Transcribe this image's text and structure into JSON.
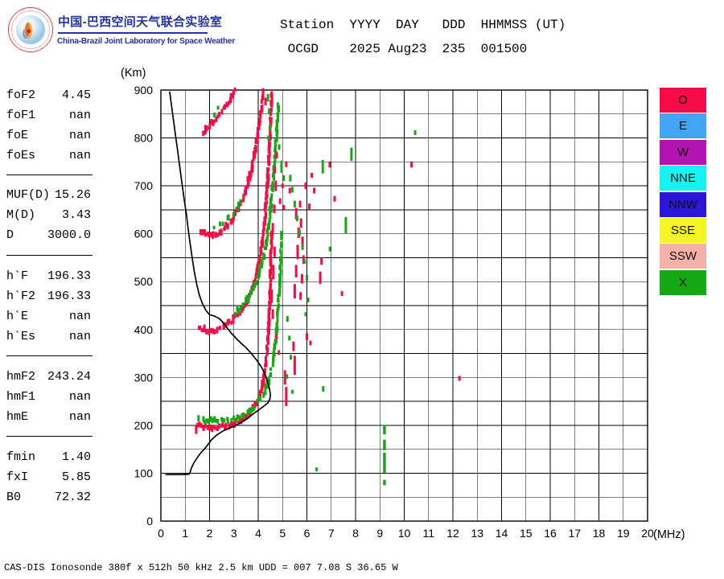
{
  "header": {
    "title_cn": "中国-巴西空间天气联合实验室",
    "subtitle_en": "China-Brazil Joint Laboratory for Space Weather",
    "station_line1": "Station  YYYY  DAY   DDD  HHMMSS (UT)",
    "station_line2": " OCGD    2025 Aug23  235  001500",
    "title_color": "#2433A2"
  },
  "parameters": {
    "groups": [
      {
        "rows": [
          {
            "label": "foF2",
            "value": "4.45"
          },
          {
            "label": "foF1",
            "value": "nan"
          },
          {
            "label": "foE",
            "value": "nan"
          },
          {
            "label": "foEs",
            "value": "nan"
          }
        ]
      },
      {
        "rows": [
          {
            "label": "MUF(D)",
            "value": "15.26"
          },
          {
            "label": "M(D)",
            "value": "3.43"
          },
          {
            "label": "D",
            "value": "3000.0"
          }
        ]
      },
      {
        "rows": [
          {
            "label": "h`F",
            "value": "196.33"
          },
          {
            "label": "h`F2",
            "value": "196.33"
          },
          {
            "label": "h`E",
            "value": "nan"
          },
          {
            "label": "h`Es",
            "value": "nan"
          }
        ]
      },
      {
        "rows": [
          {
            "label": "hmF2",
            "value": "243.24"
          },
          {
            "label": "hmF1",
            "value": "nan"
          },
          {
            "label": "hmE",
            "value": "nan"
          }
        ]
      },
      {
        "rows": [
          {
            "label": "fmin",
            "value": "1.40"
          },
          {
            "label": "fxI",
            "value": "5.85"
          },
          {
            "label": "B0",
            "value": "72.32"
          }
        ]
      }
    ]
  },
  "legend": {
    "items": [
      {
        "label": "O",
        "color": "#F80A46"
      },
      {
        "label": "E",
        "color": "#41A4F5"
      },
      {
        "label": "W",
        "color": "#B214B2"
      },
      {
        "label": "NNE",
        "color": "#17F1F1"
      },
      {
        "label": "NNW",
        "color": "#2B16D9"
      },
      {
        "label": "SSE",
        "color": "#F5F525"
      },
      {
        "label": "SSW",
        "color": "#F5B1A9"
      },
      {
        "label": "X",
        "color": "#15AA15"
      }
    ]
  },
  "caption": "CAS-DIS Ionosonde 380f x 512h 50 kHz 2.5 km UDD = 007 7.08 S 36.65 W",
  "chart_data": {
    "type": "scatter",
    "title": "Ionogram OCGD 2025 Aug23 235 001500 UT",
    "xlabel": "(MHz)",
    "ylabel": "(Km)",
    "xlim": [
      0,
      20
    ],
    "ylim": [
      0,
      900
    ],
    "grid": {
      "x_step": 1,
      "y_step": 50
    },
    "x_ticks": [
      0,
      1,
      2,
      3,
      4,
      5,
      6,
      7,
      8,
      9,
      10,
      11,
      12,
      13,
      14,
      15,
      16,
      17,
      18,
      19,
      20
    ],
    "y_ticks": [
      0,
      100,
      200,
      300,
      400,
      500,
      600,
      700,
      800,
      900
    ],
    "colors": {
      "O": "#F80A46",
      "X": "#15AA15"
    },
    "profile_line": [
      [
        0.18,
        97
      ],
      [
        0.85,
        97
      ],
      [
        1.15,
        98
      ],
      [
        1.2,
        102
      ],
      [
        1.25,
        110
      ],
      [
        1.35,
        121
      ],
      [
        1.5,
        133
      ],
      [
        1.65,
        143
      ],
      [
        1.8,
        151
      ],
      [
        1.95,
        161
      ],
      [
        2.1,
        171
      ],
      [
        2.3,
        180
      ],
      [
        2.55,
        188
      ],
      [
        2.8,
        194
      ],
      [
        3.05,
        199
      ],
      [
        3.3,
        206
      ],
      [
        3.55,
        214
      ],
      [
        3.8,
        224
      ],
      [
        4.05,
        233
      ],
      [
        4.25,
        241
      ],
      [
        4.4,
        247
      ],
      [
        4.48,
        255
      ],
      [
        4.5,
        264
      ],
      [
        4.46,
        277
      ],
      [
        4.38,
        292
      ],
      [
        4.27,
        308
      ],
      [
        4.13,
        322
      ],
      [
        3.95,
        335
      ],
      [
        3.72,
        350
      ],
      [
        3.5,
        362
      ],
      [
        3.3,
        371
      ],
      [
        3.1,
        381
      ],
      [
        2.9,
        392
      ],
      [
        2.7,
        405
      ],
      [
        2.55,
        415
      ],
      [
        2.4,
        423
      ],
      [
        2.2,
        428
      ],
      [
        2.0,
        431
      ],
      [
        1.85,
        440
      ],
      [
        1.7,
        455
      ],
      [
        1.58,
        472
      ],
      [
        1.47,
        495
      ],
      [
        1.37,
        522
      ],
      [
        1.28,
        552
      ],
      [
        1.2,
        580
      ],
      [
        1.12,
        610
      ],
      [
        1.05,
        640
      ],
      [
        0.97,
        668
      ],
      [
        0.88,
        700
      ],
      [
        0.78,
        738
      ],
      [
        0.68,
        776
      ],
      [
        0.58,
        814
      ],
      [
        0.49,
        848
      ],
      [
        0.42,
        874
      ],
      [
        0.36,
        897
      ]
    ],
    "traces": [
      {
        "name": "F-trace 1-hop O-mode",
        "color": "O",
        "density": 0.95,
        "points": [
          [
            1.42,
            197
          ],
          [
            1.6,
            199
          ],
          [
            1.85,
            197
          ],
          [
            2.1,
            196
          ],
          [
            2.4,
            197
          ],
          [
            2.7,
            199
          ],
          [
            3.0,
            204
          ],
          [
            3.25,
            211
          ],
          [
            3.5,
            221
          ],
          [
            3.75,
            233
          ],
          [
            3.95,
            250
          ],
          [
            4.1,
            270
          ],
          [
            4.2,
            293
          ],
          [
            4.3,
            325
          ],
          [
            4.37,
            362
          ],
          [
            4.43,
            408
          ],
          [
            4.47,
            455
          ],
          [
            4.5,
            505
          ],
          [
            4.53,
            558
          ],
          [
            4.55,
            608
          ]
        ]
      },
      {
        "name": "F-trace 1-hop X-mode",
        "color": "X",
        "density": 0.82,
        "points": [
          [
            1.52,
            215
          ],
          [
            1.8,
            212
          ],
          [
            2.1,
            210
          ],
          [
            2.4,
            209
          ],
          [
            2.7,
            210
          ],
          [
            3.0,
            213
          ],
          [
            3.3,
            219
          ],
          [
            3.6,
            228
          ],
          [
            3.85,
            240
          ],
          [
            4.1,
            256
          ],
          [
            4.3,
            275
          ],
          [
            4.45,
            297
          ],
          [
            4.58,
            325
          ],
          [
            4.68,
            360
          ],
          [
            4.76,
            402
          ],
          [
            4.83,
            450
          ],
          [
            4.88,
            500
          ],
          [
            4.93,
            552
          ],
          [
            4.97,
            605
          ]
        ]
      },
      {
        "name": "F-trace 2-hop O-mode",
        "color": "O",
        "density": 0.95,
        "points": [
          [
            1.55,
            406
          ],
          [
            1.75,
            401
          ],
          [
            1.95,
            399
          ],
          [
            2.15,
            398
          ],
          [
            2.35,
            401
          ],
          [
            2.55,
            406
          ],
          [
            2.75,
            412
          ],
          [
            2.95,
            420
          ],
          [
            3.15,
            431
          ],
          [
            3.35,
            444
          ],
          [
            3.55,
            460
          ],
          [
            3.7,
            478
          ],
          [
            3.85,
            498
          ],
          [
            3.97,
            523
          ],
          [
            4.08,
            551
          ],
          [
            4.17,
            583
          ],
          [
            4.25,
            618
          ],
          [
            4.31,
            655
          ],
          [
            4.37,
            695
          ],
          [
            4.42,
            738
          ],
          [
            4.46,
            780
          ],
          [
            4.5,
            825
          ],
          [
            4.53,
            868
          ],
          [
            4.55,
            895
          ]
        ]
      },
      {
        "name": "F-trace 2-hop X-mode",
        "color": "X",
        "density": 0.8,
        "points": [
          [
            3.05,
            436
          ],
          [
            3.25,
            444
          ],
          [
            3.45,
            455
          ],
          [
            3.65,
            469
          ],
          [
            3.82,
            486
          ],
          [
            3.98,
            507
          ],
          [
            4.12,
            532
          ],
          [
            4.26,
            562
          ],
          [
            4.38,
            597
          ],
          [
            4.48,
            637
          ],
          [
            4.56,
            678
          ],
          [
            4.63,
            718
          ],
          [
            4.69,
            758
          ],
          [
            4.74,
            798
          ],
          [
            4.79,
            838
          ],
          [
            4.83,
            872
          ]
        ]
      },
      {
        "name": "F-trace 3-hop O-mode",
        "color": "O",
        "density": 0.9,
        "points": [
          [
            1.65,
            603
          ],
          [
            1.85,
            598
          ],
          [
            2.05,
            596
          ],
          [
            2.25,
            598
          ],
          [
            2.45,
            603
          ],
          [
            2.65,
            612
          ],
          [
            2.85,
            624
          ],
          [
            3.05,
            640
          ],
          [
            3.25,
            661
          ],
          [
            3.45,
            686
          ],
          [
            3.62,
            714
          ],
          [
            3.77,
            745
          ],
          [
            3.9,
            778
          ],
          [
            4.0,
            812
          ],
          [
            4.1,
            848
          ],
          [
            4.18,
            882
          ],
          [
            4.23,
            900
          ]
        ]
      },
      {
        "name": "F-trace 3-hop X-mode",
        "color": "X",
        "density": 0.35,
        "points": [
          [
            2.1,
            612
          ],
          [
            2.4,
            617
          ],
          [
            2.7,
            628
          ],
          [
            3.0,
            645
          ],
          [
            3.3,
            668
          ]
        ]
      },
      {
        "name": "F-trace 4-hop O-mode",
        "color": "O",
        "density": 0.85,
        "points": [
          [
            1.75,
            812
          ],
          [
            1.95,
            822
          ],
          [
            2.15,
            833
          ],
          [
            2.35,
            845
          ],
          [
            2.55,
            858
          ],
          [
            2.75,
            872
          ],
          [
            2.95,
            888
          ],
          [
            3.08,
            900
          ]
        ]
      }
    ],
    "scatter": {
      "red_points": [
        [
          4.2,
          897,
          14
        ],
        [
          4.3,
          876,
          16
        ],
        [
          4.6,
          432,
          20
        ],
        [
          4.55,
          470,
          28
        ],
        [
          4.62,
          520,
          30
        ],
        [
          4.67,
          562,
          22
        ],
        [
          4.6,
          610,
          25
        ],
        [
          4.66,
          652,
          18
        ],
        [
          4.72,
          700,
          22
        ],
        [
          4.68,
          733,
          15
        ],
        [
          4.76,
          764,
          14
        ],
        [
          4.85,
          352,
          10
        ],
        [
          4.75,
          385,
          12
        ],
        [
          4.9,
          668,
          12
        ],
        [
          5.0,
          700,
          10
        ],
        [
          5.15,
          745,
          12
        ],
        [
          5.3,
          690,
          12
        ],
        [
          5.05,
          655,
          10
        ],
        [
          5.1,
          300,
          30
        ],
        [
          5.15,
          260,
          40
        ],
        [
          5.45,
          365,
          20
        ],
        [
          5.5,
          325,
          40
        ],
        [
          5.5,
          480,
          30
        ],
        [
          5.56,
          522,
          26
        ],
        [
          5.62,
          562,
          30
        ],
        [
          5.66,
          602,
          22
        ],
        [
          5.56,
          642,
          24
        ],
        [
          5.72,
          662,
          14
        ],
        [
          5.76,
          622,
          20
        ],
        [
          5.82,
          582,
          24
        ],
        [
          5.86,
          546,
          18
        ],
        [
          5.8,
          506,
          20
        ],
        [
          5.74,
          470,
          16
        ],
        [
          6.0,
          385,
          14
        ],
        [
          6.15,
          372,
          10
        ],
        [
          5.95,
          700,
          14
        ],
        [
          6.1,
          657,
          12
        ],
        [
          6.2,
          722,
          10
        ],
        [
          6.3,
          690,
          12
        ],
        [
          6.55,
          508,
          26
        ],
        [
          6.6,
          542,
          14
        ],
        [
          6.94,
          744,
          12
        ],
        [
          7.14,
          673,
          12
        ],
        [
          7.44,
          475,
          10
        ],
        [
          10.3,
          744,
          12
        ],
        [
          12.27,
          298,
          10
        ],
        [
          1.45,
          189,
          14
        ]
      ],
      "green_points": [
        [
          4.4,
          884,
          16
        ],
        [
          4.45,
          856,
          12
        ],
        [
          4.5,
          822,
          14
        ],
        [
          4.42,
          800,
          10
        ],
        [
          2.2,
          848,
          10
        ],
        [
          2.35,
          863,
          8
        ],
        [
          4.86,
          781,
          12
        ],
        [
          4.96,
          740,
          26
        ],
        [
          5.05,
          716,
          12
        ],
        [
          5.32,
          716,
          14
        ],
        [
          5.4,
          692,
          12
        ],
        [
          5.5,
          662,
          14
        ],
        [
          5.6,
          632,
          12
        ],
        [
          5.7,
          602,
          14
        ],
        [
          5.82,
          572,
          12
        ],
        [
          5.9,
          542,
          10
        ],
        [
          6.0,
          508,
          12
        ],
        [
          5.2,
          422,
          12
        ],
        [
          5.28,
          382,
          10
        ],
        [
          5.34,
          342,
          10
        ],
        [
          5.18,
          302,
          10
        ],
        [
          5.4,
          270,
          8
        ],
        [
          6.05,
          462,
          10
        ],
        [
          5.95,
          432,
          8
        ],
        [
          6.65,
          740,
          28
        ],
        [
          6.95,
          568,
          10
        ],
        [
          7.6,
          618,
          34
        ],
        [
          7.83,
          766,
          28
        ],
        [
          6.67,
          276,
          12
        ],
        [
          10.45,
          811,
          10
        ],
        [
          6.4,
          108,
          8
        ]
      ]
    },
    "columns": [
      {
        "f": 9.19,
        "color": "X",
        "segments": [
          [
            75,
            86
          ],
          [
            101,
            143
          ],
          [
            148,
            170
          ],
          [
            181,
            201
          ]
        ]
      }
    ]
  }
}
